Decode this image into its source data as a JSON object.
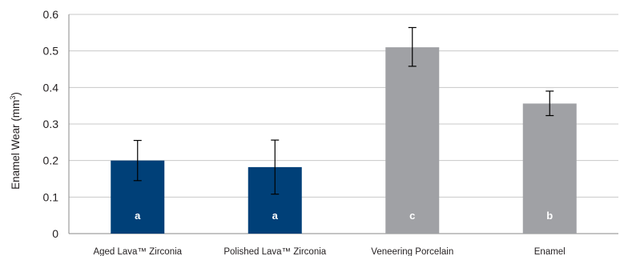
{
  "chart_data": {
    "type": "bar",
    "categories": [
      "Aged Lava™ Zirconia",
      "Polished Lava™ Zirconia",
      "Veneering Porcelain",
      "Enamel"
    ],
    "values": [
      0.2,
      0.182,
      0.51,
      0.356
    ],
    "error_low": [
      0.145,
      0.108,
      0.458,
      0.323
    ],
    "error_high": [
      0.255,
      0.256,
      0.564,
      0.39
    ],
    "bar_labels": [
      "a",
      "a",
      "c",
      "b"
    ],
    "bar_colors": [
      "#004078",
      "#004078",
      "#a0a1a5",
      "#a0a1a5"
    ],
    "ylabel_main": "Enamel Wear (mm",
    "ylabel_sup": "3",
    "ylabel_close": ")",
    "ylim": [
      0,
      0.6
    ],
    "yticks": [
      "0",
      "0.1",
      "0.2",
      "0.3",
      "0.4",
      "0.5",
      "0.6"
    ],
    "grid": true,
    "legend": "none"
  }
}
